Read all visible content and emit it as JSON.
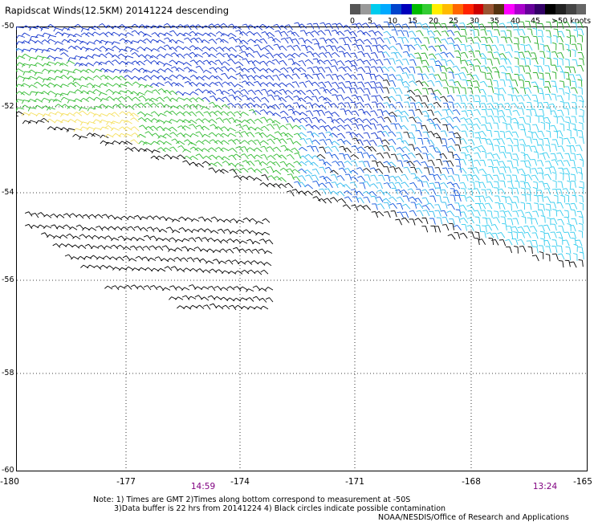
{
  "title": "Rapidscat Winds(12.5KM) 20141224 descending",
  "legend": {
    "colors": [
      "#555555",
      "#999999",
      "#00ccee",
      "#00aaff",
      "#0044cc",
      "#0000bb",
      "#00bb00",
      "#33cc33",
      "#ffee00",
      "#ffbb00",
      "#ff6600",
      "#ff2200",
      "#cc0000",
      "#995533",
      "#553311",
      "#ff00ff",
      "#aa00cc",
      "#660099",
      "#330066",
      "#000000",
      "#222222",
      "#444444",
      "#666666"
    ],
    "labels": [
      "0",
      "5",
      "10",
      "15",
      "20",
      "25",
      "30",
      "35",
      "40",
      "45",
      ">50 knots"
    ]
  },
  "map": {
    "lat_labels": [
      "-50",
      "-52",
      "-54",
      "-56",
      "-58",
      "-60"
    ],
    "lon_labels": [
      "-180",
      "-177",
      "-174",
      "-171",
      "-168",
      "-165"
    ],
    "time_labels": [
      "14:59",
      "13:24"
    ],
    "lon_range": [
      -180,
      -165
    ],
    "lat_range": [
      -50,
      -60
    ]
  },
  "notes": {
    "line1": "Note: 1) Times are GMT 2)Times along bottom correspond to measurement at -50S",
    "line2": "3)Data buffer is 22 hrs from 20141224 4) Black circles indicate possible contamination",
    "credit": "NOAA/NESDIS/Office of Research and Applications"
  }
}
